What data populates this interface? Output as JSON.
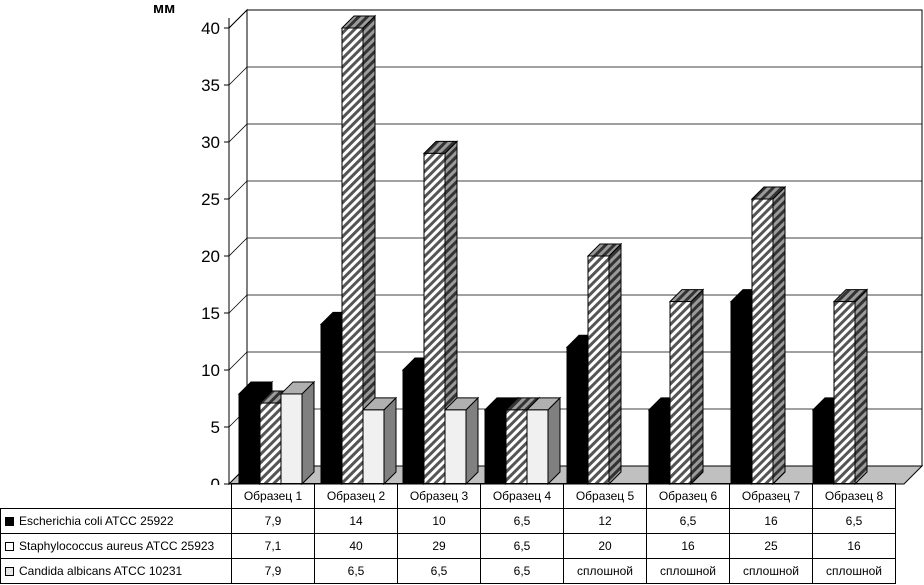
{
  "chart_data": {
    "type": "bar",
    "unit_label": "мм",
    "categories": [
      "Образец 1",
      "Образец 2",
      "Образец 3",
      "Образец 4",
      "Образец 5",
      "Образец 6",
      "Образец 7",
      "Образец 8"
    ],
    "ylim": [
      0,
      40
    ],
    "yticks": [
      "0",
      "5",
      "10",
      "15",
      "20",
      "25",
      "30",
      "35",
      "40"
    ],
    "grid": true,
    "series": [
      {
        "name": "Escherichia coli ATCC 25922",
        "values": [
          7.9,
          14,
          10,
          6.5,
          12,
          6.5,
          16,
          6.5
        ],
        "labels": [
          "7,9",
          "14",
          "10",
          "6,5",
          "12",
          "6,5",
          "16",
          "6,5"
        ],
        "style": "solid-black"
      },
      {
        "name": "Staphylococcus aureus ATCC 25923",
        "values": [
          7.1,
          40,
          29,
          6.5,
          20,
          16,
          25,
          16
        ],
        "labels": [
          "7,1",
          "40",
          "29",
          "6,5",
          "20",
          "16",
          "25",
          "16"
        ],
        "style": "diagonal-hatch"
      },
      {
        "name": "Candida albicans ATCC 10231",
        "values": [
          7.9,
          6.5,
          6.5,
          6.5,
          null,
          null,
          null,
          null
        ],
        "labels": [
          "7,9",
          "6,5",
          "6,5",
          "6,5",
          "сплошной",
          "сплошной",
          "сплошной",
          "сплошной"
        ],
        "style": "light-grey"
      }
    ],
    "legend_position": "data table below chart"
  }
}
